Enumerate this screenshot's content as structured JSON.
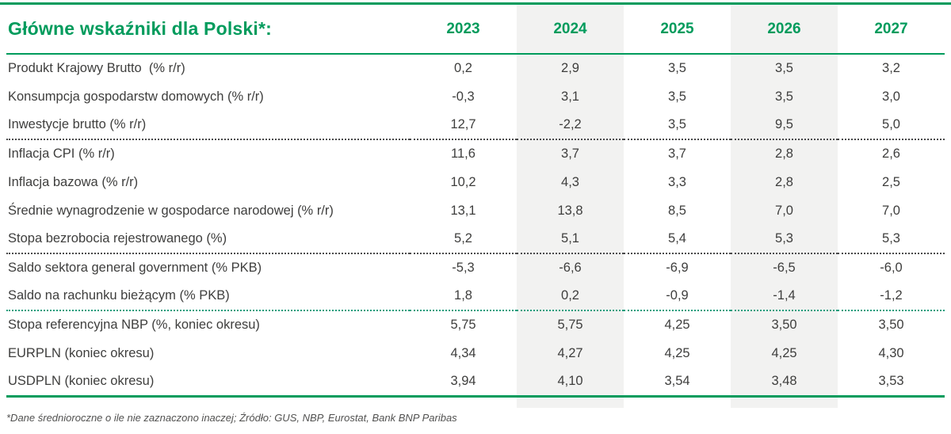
{
  "chart_data": {
    "type": "table",
    "title": "Główne wskaźniki dla Polski*:",
    "years": [
      "2023",
      "2024",
      "2025",
      "2026",
      "2027"
    ],
    "highlighted_year_columns": [
      "2024",
      "2026"
    ],
    "rows": [
      {
        "label": "Produkt Krajowy Brutto  (% r/r)",
        "values": [
          "0,2",
          "2,9",
          "3,5",
          "3,5",
          "3,2"
        ],
        "separator_before": null
      },
      {
        "label": "Konsumpcja gospodarstw domowych (% r/r)",
        "values": [
          "-0,3",
          "3,1",
          "3,5",
          "3,5",
          "3,0"
        ],
        "separator_before": null
      },
      {
        "label": "Inwestycje brutto (% r/r)",
        "values": [
          "12,7",
          "-2,2",
          "3,5",
          "9,5",
          "5,0"
        ],
        "separator_before": null
      },
      {
        "label": "Inflacja CPI (% r/r)",
        "values": [
          "11,6",
          "3,7",
          "3,7",
          "2,8",
          "2,6"
        ],
        "separator_before": "dotted"
      },
      {
        "label": "Inflacja bazowa (% r/r)",
        "values": [
          "10,2",
          "4,3",
          "3,3",
          "2,8",
          "2,5"
        ],
        "separator_before": null
      },
      {
        "label": "Średnie wynagrodzenie w gospodarce narodowej (% r/r)",
        "values": [
          "13,1",
          "13,8",
          "8,5",
          "7,0",
          "7,0"
        ],
        "separator_before": null
      },
      {
        "label": "Stopa bezrobocia rejestrowanego (%)",
        "values": [
          "5,2",
          "5,1",
          "5,4",
          "5,3",
          "5,3"
        ],
        "separator_before": null
      },
      {
        "label": "Saldo sektora general government (% PKB)",
        "values": [
          "-5,3",
          "-6,6",
          "-6,9",
          "-6,5",
          "-6,0"
        ],
        "separator_before": "dotted"
      },
      {
        "label": "Saldo na rachunku bieżącym (% PKB)",
        "values": [
          "1,8",
          "0,2",
          "-0,9",
          "-1,4",
          "-1,2"
        ],
        "separator_before": null
      },
      {
        "label": "Stopa referencyjna NBP (%, koniec okresu)",
        "values": [
          "5,75",
          "5,75",
          "4,25",
          "3,50",
          "3,50"
        ],
        "separator_before": "green"
      },
      {
        "label": "EURPLN (koniec okresu)",
        "values": [
          "4,34",
          "4,27",
          "4,25",
          "4,25",
          "4,30"
        ],
        "separator_before": null
      },
      {
        "label": "USDPLN (koniec okresu)",
        "values": [
          "3,94",
          "4,10",
          "3,54",
          "3,48",
          "3,53"
        ],
        "separator_before": null
      }
    ]
  },
  "footnote": "*Dane średnioroczne o ile nie zaznaczono inaczej; Źródło: GUS, NBP, Eurostat, Bank BNP Paribas",
  "colors": {
    "accent": "#009B5C",
    "band_gray": "#F2F2F1",
    "text_dark": "#3E3E3D",
    "sep_dark": "#4A4A4B",
    "sep_green": "#169D7D",
    "footnote_color": "#515150"
  }
}
